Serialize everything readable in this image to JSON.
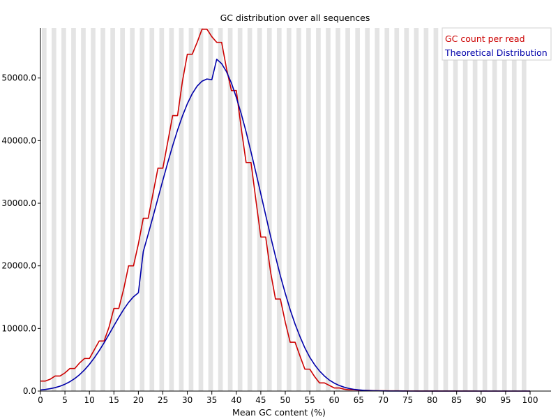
{
  "chart_data": {
    "type": "line",
    "title": "GC distribution over all sequences",
    "xlabel": "Mean GC content (%)",
    "ylabel": "",
    "xlim": [
      0,
      100
    ],
    "ylim": [
      0,
      58000
    ],
    "x_ticks": [
      0,
      5,
      10,
      15,
      20,
      25,
      30,
      35,
      40,
      45,
      50,
      55,
      60,
      65,
      70,
      75,
      80,
      85,
      90,
      95,
      100
    ],
    "x_tick_labels": [
      "0",
      "5",
      "10",
      "15",
      "20",
      "25",
      "30",
      "35",
      "40",
      "45",
      "50",
      "55",
      "60",
      "65",
      "70",
      "75",
      "80",
      "85",
      "90",
      "95",
      "100"
    ],
    "y_ticks": [
      0,
      10000,
      20000,
      30000,
      40000,
      50000
    ],
    "y_tick_labels": [
      "0.0",
      "10000.0",
      "20000.0",
      "30000.0",
      "40000.0",
      "50000.0"
    ],
    "background": "alternating-vertical-bands",
    "legend": {
      "position": "top-right"
    },
    "series": [
      {
        "name": "GC count per read",
        "color": "#cc0000",
        "style": "step",
        "x": [
          0,
          1,
          2,
          3,
          4,
          5,
          6,
          7,
          8,
          9,
          10,
          11,
          12,
          13,
          14,
          15,
          16,
          17,
          18,
          19,
          20,
          21,
          22,
          23,
          24,
          25,
          26,
          27,
          28,
          29,
          30,
          31,
          32,
          33,
          34,
          35,
          36,
          37,
          38,
          39,
          40,
          41,
          42,
          43,
          44,
          45,
          46,
          47,
          48,
          49,
          50,
          51,
          52,
          53,
          54,
          55,
          56,
          57,
          58,
          59,
          60,
          61,
          62,
          63,
          64,
          65,
          66,
          67,
          68,
          69,
          70,
          71,
          72,
          73,
          74,
          75,
          76,
          77,
          78,
          79,
          80,
          81,
          82,
          83,
          84,
          85,
          86,
          87,
          88,
          89,
          90,
          91,
          92,
          93,
          94,
          95,
          96,
          97,
          98,
          99,
          100
        ],
        "values": [
          1600,
          1600,
          1900,
          2400,
          2400,
          2900,
          3600,
          3600,
          4500,
          5200,
          5200,
          6600,
          8000,
          8000,
          10200,
          13200,
          13200,
          16300,
          20000,
          20000,
          23500,
          27600,
          27600,
          31600,
          35600,
          35600,
          39800,
          44000,
          44000,
          49500,
          53800,
          53800,
          55700,
          57800,
          57800,
          56600,
          55700,
          55700,
          51500,
          48000,
          48000,
          42000,
          36500,
          36500,
          30500,
          24600,
          24600,
          19000,
          14700,
          14700,
          11000,
          7800,
          7800,
          5600,
          3500,
          3500,
          2300,
          1300,
          1300,
          900,
          500,
          500,
          300,
          200,
          200,
          150,
          100,
          100,
          70,
          50,
          50,
          40,
          30,
          30,
          20,
          15,
          15,
          10,
          8,
          8,
          6,
          5,
          5,
          4,
          3,
          3,
          2,
          2,
          2,
          1,
          1,
          1,
          1,
          1,
          1,
          0,
          0,
          0,
          0,
          0,
          0
        ]
      },
      {
        "name": "Theoretical Distribution",
        "color": "#0000aa",
        "style": "line",
        "x": [
          0,
          1,
          2,
          3,
          4,
          5,
          6,
          7,
          8,
          9,
          10,
          11,
          12,
          13,
          14,
          15,
          16,
          17,
          18,
          19,
          20,
          21,
          22,
          23,
          24,
          25,
          26,
          27,
          28,
          29,
          30,
          31,
          32,
          33,
          34,
          35,
          36,
          37,
          38,
          39,
          40,
          41,
          42,
          43,
          44,
          45,
          46,
          47,
          48,
          49,
          50,
          51,
          52,
          53,
          54,
          55,
          56,
          57,
          58,
          59,
          60,
          61,
          62,
          63,
          64,
          65,
          66,
          67,
          68,
          69,
          70,
          71,
          72,
          73,
          74,
          75,
          76,
          77,
          78,
          79,
          80,
          81,
          82,
          83,
          84,
          85,
          86,
          87,
          88,
          89,
          90,
          91,
          92,
          93,
          94,
          95,
          96,
          97,
          98,
          99,
          100
        ],
        "values": [
          170,
          257,
          380,
          551,
          783,
          1091,
          1490,
          1996,
          2623,
          3381,
          4275,
          5304,
          6459,
          7720,
          9056,
          10426,
          11776,
          13043,
          14160,
          15063,
          15693,
          22280,
          25046,
          27900,
          30795,
          33679,
          36496,
          39185,
          41686,
          43941,
          45895,
          47499,
          48711,
          49500,
          49845,
          49734,
          53000,
          52300,
          51000,
          49200,
          46900,
          44300,
          41400,
          38200,
          34900,
          31500,
          28100,
          24700,
          21500,
          18400,
          15600,
          13000,
          10700,
          8700,
          6900,
          5400,
          4200,
          3200,
          2400,
          1750,
          1270,
          900,
          620,
          420,
          280,
          185,
          120,
          76,
          48,
          30,
          18,
          11,
          6,
          4,
          2,
          1,
          1,
          0,
          0,
          0,
          0,
          0,
          0,
          0,
          0,
          0,
          0,
          0,
          0,
          0,
          0,
          0,
          0,
          0,
          0,
          0,
          0,
          0,
          0,
          0,
          0
        ]
      }
    ]
  }
}
